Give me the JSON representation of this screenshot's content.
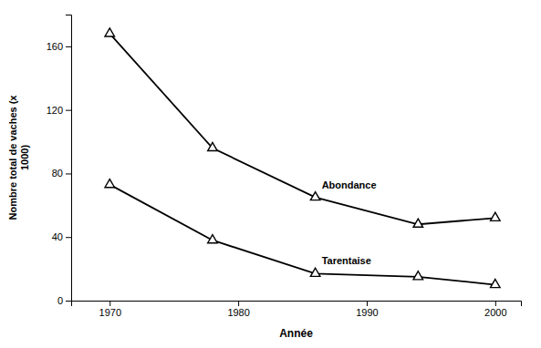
{
  "chart_data": {
    "type": "line",
    "xlabel": "Année",
    "ylabel": "Nombre total de vaches (x\n1000)",
    "x": [
      1970,
      1978,
      1986,
      1994,
      2000
    ],
    "series": [
      {
        "name": "Abondance",
        "color": "#000000",
        "marker": "triangle",
        "line_style": "solid",
        "values": [
          168,
          96,
          65,
          48,
          52
        ]
      },
      {
        "name": "Tarentaise",
        "color": "#000000",
        "marker": "triangle",
        "line_style": "solid",
        "values": [
          73,
          38,
          17,
          15,
          10
        ]
      }
    ],
    "xlim": [
      1967,
      2002
    ],
    "ylim": [
      0,
      180
    ],
    "xticks": [
      1970,
      1980,
      1990,
      2000
    ],
    "yticks": [
      0,
      40,
      80,
      120,
      160
    ]
  }
}
